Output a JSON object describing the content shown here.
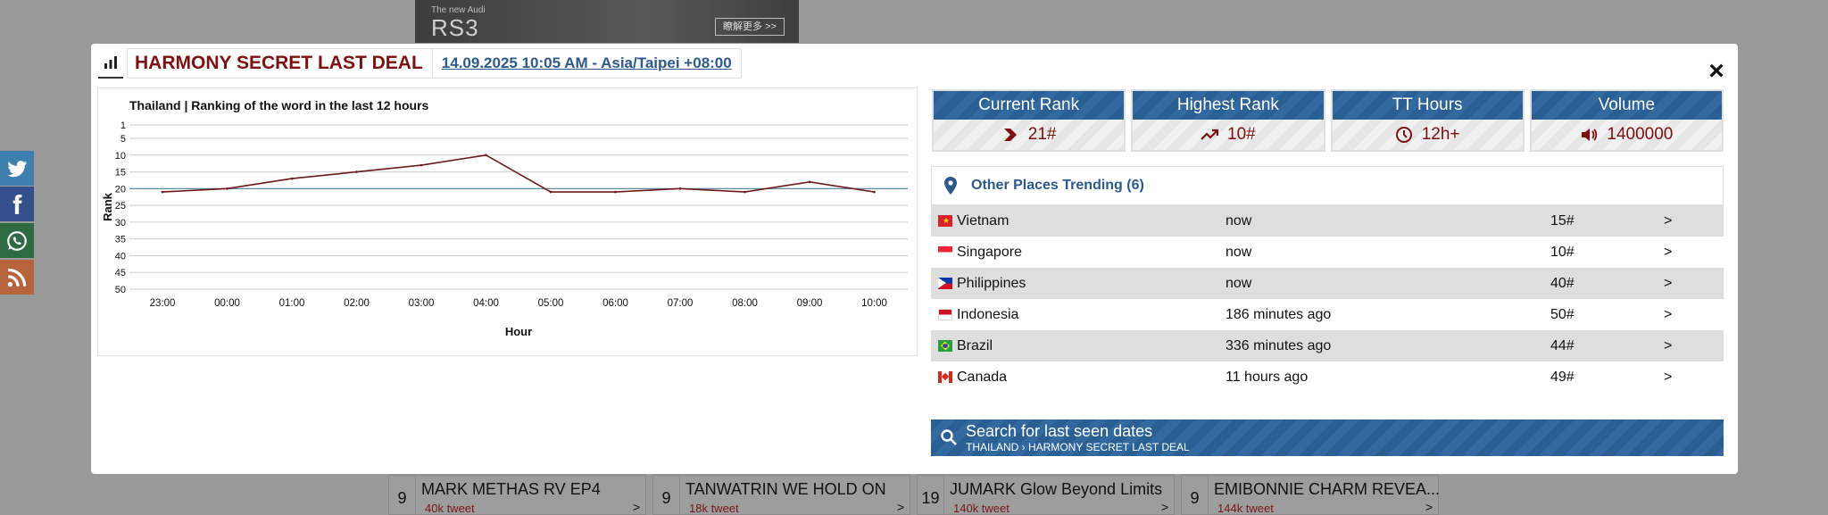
{
  "background": {
    "ad": {
      "small_text": "The new Audi",
      "model": "RS3",
      "button": "瞭解更多 >>"
    },
    "trend_rows": [
      {
        "rank": "9",
        "name": "MARK METHAS RV EP4",
        "tweets": "40k tweet",
        "arrow": ">"
      },
      {
        "rank": "9",
        "name": "TANWATRIN WE HOLD ON",
        "tweets": "18k tweet",
        "arrow": ">"
      },
      {
        "rank": "19",
        "name": "JUMARK Glow Beyond Limits",
        "tweets": "140k tweet",
        "arrow": ">"
      },
      {
        "rank": "9",
        "name": "EMIBONNIE CHARM REVEA...",
        "tweets": "144k tweet",
        "arrow": ">"
      }
    ]
  },
  "modal": {
    "title": "HARMONY SECRET LAST DEAL",
    "datetime": "14.09.2025 10:05 AM - Asia/Taipei +08:00",
    "close": "×"
  },
  "chart_data": {
    "type": "line",
    "title": "Thailand | Ranking of the word in the last 12 hours",
    "xlabel": "Hour",
    "ylabel": "Rank",
    "categories": [
      "23:00",
      "00:00",
      "01:00",
      "02:00",
      "03:00",
      "04:00",
      "05:00",
      "06:00",
      "07:00",
      "08:00",
      "09:00",
      "10:00"
    ],
    "series": [
      {
        "values": [
          21,
          20,
          17,
          15,
          13,
          10,
          21,
          21,
          20,
          21,
          18,
          21
        ]
      }
    ],
    "yticks": [
      1,
      5,
      10,
      15,
      20,
      25,
      30,
      35,
      40,
      45,
      50
    ],
    "ylim": [
      1,
      50
    ],
    "y_inverted": true,
    "reference_line": 20,
    "grid": true,
    "line_color": "#6e1a1a",
    "reference_color": "#5a8fa8"
  },
  "stats": [
    {
      "label": "Current Rank",
      "value": "21#",
      "icon": "chevron-right-icon"
    },
    {
      "label": "Highest Rank",
      "value": "10#",
      "icon": "trending-up-icon"
    },
    {
      "label": "TT Hours",
      "value": "12h+",
      "icon": "clock-icon"
    },
    {
      "label": "Volume",
      "value": "1400000",
      "icon": "volume-icon"
    }
  ],
  "other_places": {
    "title": "Other Places Trending (6)",
    "rows": [
      {
        "country": "Vietnam",
        "time": "now",
        "rank": "15#",
        "go": ">",
        "flag": "vietnam"
      },
      {
        "country": "Singapore",
        "time": "now",
        "rank": "10#",
        "go": ">",
        "flag": "singapore"
      },
      {
        "country": "Philippines",
        "time": "now",
        "rank": "40#",
        "go": ">",
        "flag": "philippines"
      },
      {
        "country": "Indonesia",
        "time": "186 minutes ago",
        "rank": "50#",
        "go": ">",
        "flag": "indonesia"
      },
      {
        "country": "Brazil",
        "time": "336 minutes ago",
        "rank": "44#",
        "go": ">",
        "flag": "brazil"
      },
      {
        "country": "Canada",
        "time": "11 hours ago",
        "rank": "49#",
        "go": ">",
        "flag": "canada"
      }
    ]
  },
  "search": {
    "title": "Search for last seen dates",
    "subtitle": "THAILAND › HARMONY SECRET LAST DEAL"
  },
  "colors": {
    "accent_blue": "#2a5f93",
    "title_red": "#7d1010",
    "link_blue": "#2d5a8a"
  }
}
